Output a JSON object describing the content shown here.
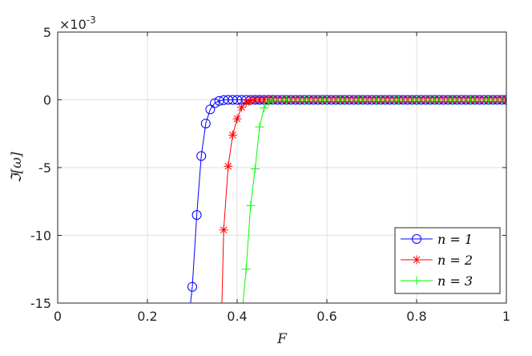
{
  "chart_data": {
    "type": "line",
    "title": "",
    "xlabel": "F",
    "ylabel": "ℑ[ω]",
    "y_multiplier": "×10",
    "y_multiplier_exp": "-3",
    "xlim": [
      0,
      1
    ],
    "ylim": [
      -15,
      5
    ],
    "x_ticks": [
      "0",
      "0.2",
      "0.4",
      "0.6",
      "0.8",
      "1"
    ],
    "y_ticks": [
      "5",
      "0",
      "-5",
      "-10",
      "-15"
    ],
    "grid": true,
    "legend_position": "bottom-right",
    "series": [
      {
        "name": "n = 1",
        "color": "#0000ff",
        "marker": "circle",
        "curve_x": [
          0.296,
          0.3,
          0.31,
          0.32,
          0.33,
          0.34,
          0.35,
          0.36,
          0.37,
          0.38,
          0.4,
          1.0
        ],
        "curve_y": [
          -15,
          -13.8,
          -8.5,
          -4.15,
          -1.75,
          -0.7,
          -0.25,
          -0.08,
          -0.02,
          0,
          0,
          0
        ],
        "x": [
          0.3,
          0.31,
          0.32,
          0.33,
          0.34,
          0.35,
          0.36,
          0.37,
          0.38,
          0.39,
          0.4,
          0.41,
          0.42,
          0.43,
          0.44,
          0.45,
          0.46,
          0.47,
          0.48,
          0.49,
          0.5,
          0.51,
          0.52,
          0.53,
          0.54,
          0.55,
          0.56,
          0.57,
          0.58,
          0.59,
          0.6,
          0.61,
          0.62,
          0.63,
          0.64,
          0.65,
          0.66,
          0.67,
          0.68,
          0.69,
          0.7,
          0.71,
          0.72,
          0.73,
          0.74,
          0.75,
          0.76,
          0.77,
          0.78,
          0.79,
          0.8,
          0.81,
          0.82,
          0.83,
          0.84,
          0.85,
          0.86,
          0.87,
          0.88,
          0.89,
          0.9,
          0.91,
          0.92,
          0.93,
          0.94,
          0.95,
          0.96,
          0.97,
          0.98,
          0.99,
          1.0
        ],
        "y": [
          -13.8,
          -8.5,
          -4.15,
          -1.75,
          -0.7,
          -0.25,
          -0.08,
          -0.02,
          0,
          0,
          0,
          0,
          0,
          0,
          0,
          0,
          0,
          0,
          0,
          0,
          0,
          0,
          0,
          0,
          0,
          0,
          0,
          0,
          0,
          0,
          0,
          0,
          0,
          0,
          0,
          0,
          0,
          0,
          0,
          0,
          0,
          0,
          0,
          0,
          0,
          0,
          0,
          0,
          0,
          0,
          0,
          0,
          0,
          0,
          0,
          0,
          0,
          0,
          0,
          0,
          0,
          0,
          0,
          0,
          0,
          0,
          0,
          0,
          0,
          0,
          0
        ]
      },
      {
        "name": "n = 2",
        "color": "#ff0000",
        "marker": "asterisk",
        "curve_x": [
          0.366,
          0.37,
          0.38,
          0.39,
          0.4,
          0.41,
          0.42,
          0.43,
          0.44,
          0.45,
          0.46,
          1.0
        ],
        "curve_y": [
          -15,
          -9.6,
          -4.9,
          -2.6,
          -1.4,
          -0.55,
          -0.2,
          -0.06,
          -0.01,
          0,
          0,
          0
        ],
        "x": [
          0.37,
          0.38,
          0.39,
          0.4,
          0.41,
          0.42,
          0.43,
          0.44,
          0.45,
          0.46,
          0.47,
          0.48,
          0.49,
          0.5,
          0.51,
          0.52,
          0.53,
          0.54,
          0.55,
          0.56,
          0.57,
          0.58,
          0.59,
          0.6,
          0.61,
          0.62,
          0.63,
          0.64,
          0.65,
          0.66,
          0.67,
          0.68,
          0.69,
          0.7,
          0.71,
          0.72,
          0.73,
          0.74,
          0.75,
          0.76,
          0.77,
          0.78,
          0.79,
          0.8,
          0.81,
          0.82,
          0.83,
          0.84,
          0.85,
          0.86,
          0.87,
          0.88,
          0.89,
          0.9,
          0.91,
          0.92,
          0.93,
          0.94,
          0.95,
          0.96,
          0.97,
          0.98,
          0.99,
          1.0
        ],
        "y": [
          -9.6,
          -4.9,
          -2.6,
          -1.4,
          -0.55,
          -0.2,
          -0.06,
          -0.01,
          0,
          0,
          0,
          0,
          0,
          0,
          0,
          0,
          0,
          0,
          0,
          0,
          0,
          0,
          0,
          0,
          0,
          0,
          0,
          0,
          0,
          0,
          0,
          0,
          0,
          0,
          0,
          0,
          0,
          0,
          0,
          0,
          0,
          0,
          0,
          0,
          0,
          0,
          0,
          0,
          0,
          0,
          0,
          0,
          0,
          0,
          0,
          0,
          0,
          0,
          0,
          0,
          0,
          0,
          0,
          0
        ]
      },
      {
        "name": "n = 3",
        "color": "#00ff00",
        "marker": "plus",
        "curve_x": [
          0.413,
          0.42,
          0.43,
          0.44,
          0.45,
          0.46,
          0.47,
          0.48,
          0.49,
          0.5,
          1.0
        ],
        "curve_y": [
          -15,
          -12.5,
          -7.8,
          -5.1,
          -2.0,
          -0.6,
          -0.15,
          -0.03,
          0,
          0,
          0
        ],
        "x": [
          0.42,
          0.43,
          0.44,
          0.45,
          0.46,
          0.47,
          0.48,
          0.49,
          0.5,
          0.51,
          0.52,
          0.53,
          0.54,
          0.55,
          0.56,
          0.57,
          0.58,
          0.59,
          0.6,
          0.61,
          0.62,
          0.63,
          0.64,
          0.65,
          0.66,
          0.67,
          0.68,
          0.69,
          0.7,
          0.71,
          0.72,
          0.73,
          0.74,
          0.75,
          0.76,
          0.77,
          0.78,
          0.79,
          0.8,
          0.81,
          0.82,
          0.83,
          0.84,
          0.85,
          0.86,
          0.87,
          0.88,
          0.89,
          0.9,
          0.91,
          0.92,
          0.93,
          0.94,
          0.95,
          0.96,
          0.97,
          0.98,
          0.99,
          1.0
        ],
        "y": [
          -12.5,
          -7.8,
          -5.1,
          -2.0,
          -0.6,
          -0.15,
          -0.03,
          0,
          0,
          0,
          0,
          0,
          0,
          0,
          0,
          0,
          0,
          0,
          0,
          0,
          0,
          0,
          0,
          0,
          0,
          0,
          0,
          0,
          0,
          0,
          0,
          0,
          0,
          0,
          0,
          0,
          0,
          0,
          0,
          0,
          0,
          0,
          0,
          0,
          0,
          0,
          0,
          0,
          0,
          0,
          0,
          0,
          0,
          0,
          0,
          0,
          0,
          0,
          0
        ]
      }
    ]
  }
}
